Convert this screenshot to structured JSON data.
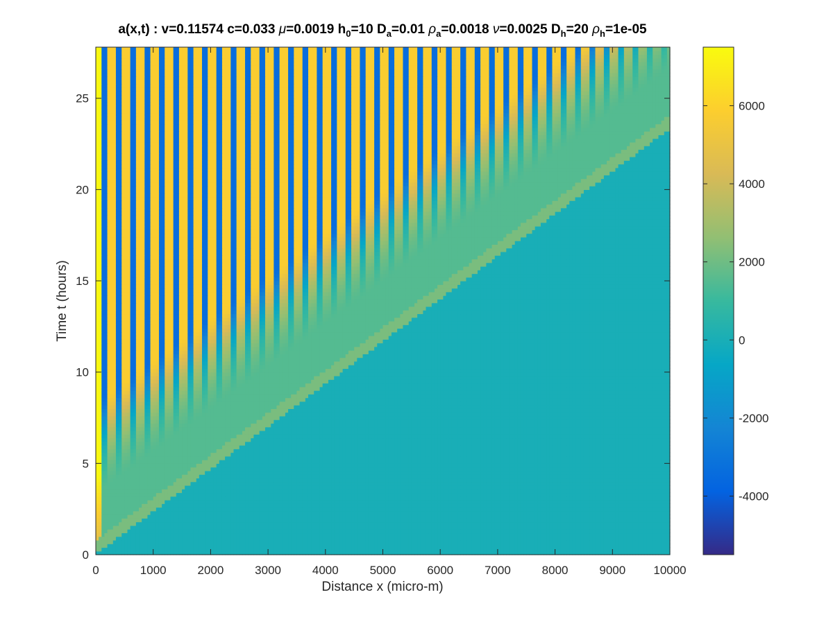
{
  "chart_data": {
    "type": "heatmap",
    "title": {
      "prefix": "a(x,t) :  v=0.11574 c=0.033 ",
      "mu_symbol": "μ",
      "mu_text": "=0.0019 h",
      "h0_sub": "0",
      "h0_text": "=10 D",
      "Da_sub": "a",
      "Da_text": "=0.01 ",
      "rho_a_symbol": "ρ",
      "rho_a_sub": "a",
      "rho_a_text": "=0.0018 ",
      "nu_symbol": "ν",
      "nu_text": "=0.0025 D",
      "Dh_sub": "h",
      "Dh_text": "=20 ",
      "rho_h_symbol": "ρ",
      "rho_h_sub": "h",
      "rho_h_text": "=1e-05"
    },
    "xlabel": "Distance x (micro-m)",
    "ylabel": "Time t (hours)",
    "xlim": [
      0,
      10000
    ],
    "ylim": [
      0,
      27.8
    ],
    "xticks": [
      "0",
      "1000",
      "2000",
      "3000",
      "4000",
      "5000",
      "6000",
      "7000",
      "8000",
      "9000",
      "10000"
    ],
    "yticks": [
      "0",
      "5",
      "10",
      "15",
      "20",
      "25"
    ],
    "colorbar": {
      "clim": [
        -5500,
        7500
      ],
      "ticks": [
        "-4000",
        "-2000",
        "0",
        "2000",
        "4000",
        "6000"
      ],
      "colormap": "parula"
    },
    "front": {
      "description_values": "Front speed v=0.11574 micro-m/s; front reaches x=10000 at about t=24 h",
      "t_at_x0": 0.3,
      "t_at_x10000": 23.6
    },
    "levels": {
      "ahead_of_front": 0,
      "behind_front_plateau": 1500,
      "stripe_high": 5800,
      "stripe_low": -5200,
      "left_edge_max": 7400
    },
    "stripes": {
      "spacing": 250,
      "first_center": 150
    }
  },
  "colors": {
    "parula_stops": [
      "#352a87",
      "#0363e1",
      "#1485d4",
      "#06a7c6",
      "#38b99e",
      "#92bf73",
      "#d9ba56",
      "#fcce2e",
      "#f9fb0e"
    ]
  }
}
